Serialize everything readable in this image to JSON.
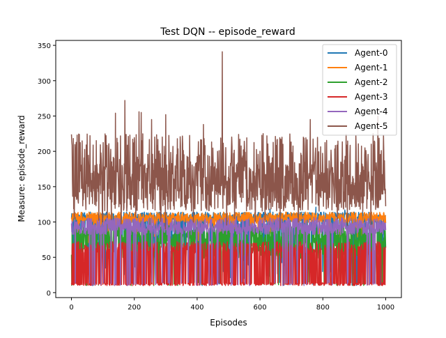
{
  "chart_data": {
    "type": "line",
    "title": "Test  DQN -- episode_reward",
    "xlabel": "Episodes",
    "ylabel": "Measure: episode_reward",
    "xlim": [
      -50,
      1050
    ],
    "ylim": [
      -7,
      357
    ],
    "xticks": [
      0,
      200,
      400,
      600,
      800,
      1000
    ],
    "yticks": [
      0,
      50,
      100,
      150,
      200,
      250,
      300,
      350
    ],
    "grid": false,
    "legend_position": "top-right",
    "series": [
      {
        "name": "Agent-0",
        "color": "#1f77b4",
        "pattern": {
          "base": [
            20,
            100
          ],
          "high": [
            100,
            114
          ],
          "p_high": 0.75,
          "drop_p": 0.03,
          "drop": [
            10,
            15
          ],
          "seed": 11
        },
        "peaks": [
          [
            632,
            118
          ],
          [
            870,
            117
          ],
          [
            778,
            121
          ]
        ]
      },
      {
        "name": "Agent-1",
        "color": "#ff7f0e",
        "pattern": {
          "base": [
            98,
            108
          ],
          "high": [
            108,
            114
          ],
          "p_high": 0.35,
          "drop_p": 0.06,
          "drop": [
            70,
            95
          ],
          "seed": 23
        },
        "peaks": [
          [
            955,
            114
          ],
          [
            962,
            113
          ]
        ]
      },
      {
        "name": "Agent-2",
        "color": "#2ca02c",
        "pattern": {
          "base": [
            48,
            85
          ],
          "high": [
            85,
            95
          ],
          "p_high": 0.3,
          "drop_p": 0.06,
          "drop": [
            10,
            15
          ],
          "seed": 37
        },
        "peaks": [
          [
            262,
            10
          ],
          [
            895,
            10
          ]
        ]
      },
      {
        "name": "Agent-3",
        "color": "#d62728",
        "pattern": {
          "base": [
            10,
            14
          ],
          "high": [
            55,
            72
          ],
          "p_high": 0.55,
          "drop_p": 0.0,
          "drop": [
            10,
            12
          ],
          "seed": 41
        },
        "peaks": []
      },
      {
        "name": "Agent-4",
        "color": "#9467bd",
        "pattern": {
          "base": [
            82,
            97
          ],
          "high": [
            97,
            106
          ],
          "p_high": 0.3,
          "drop_p": 0.06,
          "drop": [
            10,
            15
          ],
          "seed": 53
        },
        "peaks": [
          [
            66,
            10
          ],
          [
            137,
            10
          ],
          [
            178,
            10
          ],
          [
            205,
            12
          ],
          [
            225,
            11
          ],
          [
            530,
            11
          ],
          [
            567,
            10
          ],
          [
            695,
            11
          ],
          [
            740,
            10
          ],
          [
            830,
            11
          ]
        ]
      },
      {
        "name": "Agent-5",
        "color": "#8c564b",
        "pattern": {
          "base": [
            115,
            185
          ],
          "high": [
            185,
            225
          ],
          "p_high": 0.18,
          "drop_p": 0.02,
          "drop": [
            90,
            110
          ],
          "seed": 67
        },
        "peaks": [
          [
            0,
            224
          ],
          [
            18,
            223
          ],
          [
            25,
            224
          ],
          [
            140,
            254
          ],
          [
            170,
            272
          ],
          [
            215,
            256
          ],
          [
            222,
            255
          ],
          [
            255,
            245
          ],
          [
            300,
            252
          ],
          [
            420,
            238
          ],
          [
            480,
            341
          ],
          [
            610,
            225
          ],
          [
            670,
            220
          ],
          [
            760,
            245
          ],
          [
            960,
            225
          ],
          [
            975,
            250
          ]
        ]
      }
    ]
  }
}
